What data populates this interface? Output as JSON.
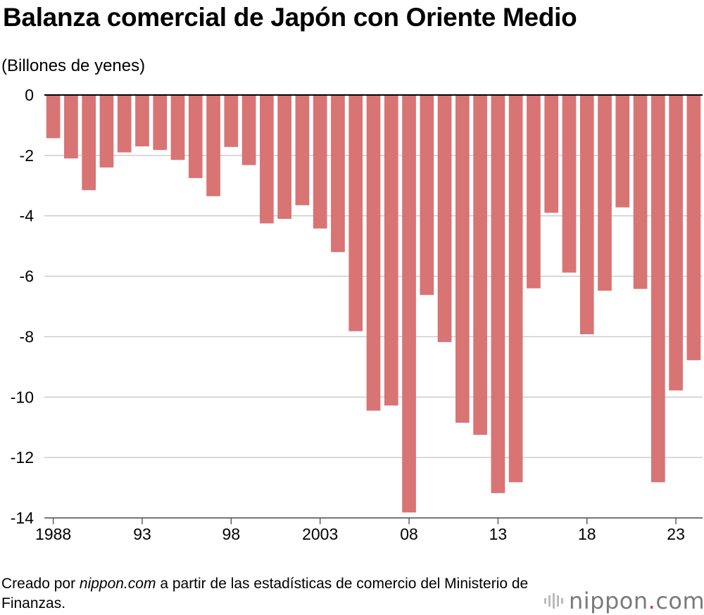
{
  "title": "Balanza comercial de Japón con Oriente Medio",
  "unit_label": "(Billones de yenes)",
  "footnote": {
    "prefix": "Creado por ",
    "site": "nippon.com",
    "suffix": " a partir de las estadísticas de comercio del Ministerio de Finanzas."
  },
  "logo": {
    "text_main": "nippon",
    "text_dot": ".",
    "text_tld": "com",
    "dot_color": "#d63a3a"
  },
  "chart_data": {
    "type": "bar",
    "title": "Balanza comercial de Japón con Oriente Medio",
    "ylabel": "(Billones de yenes)",
    "xlabel": "",
    "ylim": [
      -14,
      0
    ],
    "yticks": [
      0,
      -2,
      -4,
      -6,
      -8,
      -10,
      -12,
      -14
    ],
    "grid": true,
    "bar_color": "#d97474",
    "categories": [
      "1988",
      "1989",
      "1990",
      "1991",
      "1992",
      "1993",
      "1994",
      "1995",
      "1996",
      "1997",
      "1998",
      "1999",
      "2000",
      "2001",
      "2002",
      "2003",
      "2004",
      "2005",
      "2006",
      "2007",
      "2008",
      "2009",
      "2010",
      "2011",
      "2012",
      "2013",
      "2014",
      "2015",
      "2016",
      "2017",
      "2018",
      "2019",
      "2020",
      "2021",
      "2022",
      "2023",
      "2024"
    ],
    "values": [
      -1.43,
      -2.1,
      -3.15,
      -2.4,
      -1.9,
      -1.7,
      -1.82,
      -2.15,
      -2.75,
      -3.35,
      -1.72,
      -2.32,
      -4.25,
      -4.1,
      -3.65,
      -4.42,
      -5.2,
      -7.82,
      -10.45,
      -10.28,
      -13.82,
      -6.62,
      -8.18,
      -10.85,
      -11.25,
      -13.18,
      -12.82,
      -6.4,
      -3.9,
      -5.88,
      -7.92,
      -6.48,
      -3.72,
      -6.42,
      -12.82,
      -9.78,
      -8.78
    ],
    "xtick_labels": [
      {
        "index": 0,
        "label": "1988"
      },
      {
        "index": 5,
        "label": "93"
      },
      {
        "index": 10,
        "label": "98"
      },
      {
        "index": 15,
        "label": "2003"
      },
      {
        "index": 20,
        "label": "08"
      },
      {
        "index": 25,
        "label": "13"
      },
      {
        "index": 30,
        "label": "18"
      },
      {
        "index": 35,
        "label": "23"
      }
    ]
  }
}
